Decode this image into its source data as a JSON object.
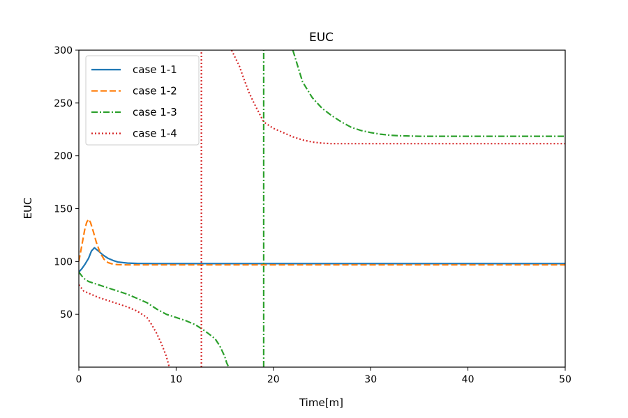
{
  "chart_data": {
    "type": "line",
    "title": "EUC",
    "xlabel": "Time[m]",
    "ylabel": "EUC",
    "xlim": [
      0,
      50
    ],
    "ylim": [
      0,
      300
    ],
    "xticks": [
      0,
      10,
      20,
      30,
      40,
      50
    ],
    "xtick_labels": [
      "0",
      "10",
      "20",
      "30",
      "40",
      "50"
    ],
    "yticks": [
      50,
      100,
      150,
      200,
      250,
      300
    ],
    "ytick_labels": [
      "50",
      "100",
      "150",
      "200",
      "250",
      "300"
    ],
    "grid": false,
    "legend_position": "top-left",
    "series": [
      {
        "name": "case 1-1",
        "color": "#1f77b4",
        "style": "solid",
        "points": [
          [
            0,
            90
          ],
          [
            0.3,
            93
          ],
          [
            0.6,
            97
          ],
          [
            1.0,
            103
          ],
          [
            1.3,
            110
          ],
          [
            1.6,
            113
          ],
          [
            2.0,
            110
          ],
          [
            2.5,
            106
          ],
          [
            3.0,
            103
          ],
          [
            3.5,
            101
          ],
          [
            4.0,
            99.5
          ],
          [
            5.0,
            98.5
          ],
          [
            6.0,
            98.2
          ],
          [
            8.0,
            98
          ],
          [
            10,
            98
          ],
          [
            20,
            98
          ],
          [
            30,
            98
          ],
          [
            40,
            98
          ],
          [
            50,
            98
          ]
        ]
      },
      {
        "name": "case 1-2",
        "color": "#ff7f0e",
        "style": "dashed",
        "points": [
          [
            0,
            100
          ],
          [
            0.3,
            115
          ],
          [
            0.6,
            130
          ],
          [
            0.8,
            137
          ],
          [
            1.0,
            140
          ],
          [
            1.2,
            137
          ],
          [
            1.5,
            128
          ],
          [
            1.8,
            118
          ],
          [
            2.2,
            108
          ],
          [
            2.6,
            102
          ],
          [
            3.0,
            99
          ],
          [
            3.5,
            97.5
          ],
          [
            4.0,
            97
          ],
          [
            5.0,
            96.8
          ],
          [
            10,
            96.8
          ],
          [
            20,
            96.8
          ],
          [
            30,
            96.8
          ],
          [
            40,
            96.8
          ],
          [
            50,
            96.8
          ]
        ]
      },
      {
        "name": "case 1-3",
        "color": "#2ca02c",
        "style": "dashdot",
        "segments": [
          [
            [
              0,
              90
            ],
            [
              0.5,
              84
            ],
            [
              1,
              81
            ],
            [
              2,
              78
            ],
            [
              3,
              75
            ],
            [
              4,
              72
            ],
            [
              5,
              69
            ],
            [
              6,
              65
            ],
            [
              7,
              61
            ],
            [
              8,
              55
            ],
            [
              9,
              50
            ],
            [
              10,
              47
            ],
            [
              11,
              44
            ],
            [
              12,
              40
            ],
            [
              13,
              34
            ],
            [
              14,
              27
            ],
            [
              14.5,
              20
            ],
            [
              15,
              10
            ],
            [
              15.2,
              4
            ],
            [
              15.4,
              0
            ]
          ],
          [
            [
              19,
              0
            ],
            [
              19,
              300
            ]
          ],
          [
            [
              22,
              300
            ],
            [
              23,
              270
            ],
            [
              24,
              255
            ],
            [
              25,
              245
            ],
            [
              26,
              238
            ],
            [
              27,
              232
            ],
            [
              28,
              227
            ],
            [
              29,
              224
            ],
            [
              30,
              222
            ],
            [
              31,
              220.5
            ],
            [
              32,
              219.5
            ],
            [
              33,
              219
            ],
            [
              35,
              218.5
            ],
            [
              40,
              218.5
            ],
            [
              45,
              218.5
            ],
            [
              50,
              218.5
            ]
          ]
        ]
      },
      {
        "name": "case 1-4",
        "color": "#d62728",
        "style": "dotted",
        "segments": [
          [
            [
              0,
              78
            ],
            [
              0.5,
              72
            ],
            [
              1,
              70
            ],
            [
              2,
              66
            ],
            [
              3,
              63
            ],
            [
              4,
              60
            ],
            [
              5,
              57
            ],
            [
              6,
              53
            ],
            [
              7,
              47
            ],
            [
              7.5,
              40
            ],
            [
              8,
              32
            ],
            [
              8.5,
              22
            ],
            [
              9,
              10
            ],
            [
              9.3,
              0
            ]
          ],
          [
            [
              12.6,
              0
            ],
            [
              12.6,
              300
            ]
          ],
          [
            [
              15.7,
              300
            ],
            [
              16.5,
              285
            ],
            [
              17,
              272
            ],
            [
              17.5,
              260
            ],
            [
              18,
              250
            ],
            [
              19,
              232
            ],
            [
              20,
              226
            ],
            [
              21,
              222
            ],
            [
              22,
              218
            ],
            [
              23,
              215
            ],
            [
              24,
              213
            ],
            [
              25,
              212
            ],
            [
              26,
              211.5
            ],
            [
              30,
              211.5
            ],
            [
              40,
              211.5
            ],
            [
              50,
              211.5
            ]
          ]
        ]
      }
    ]
  }
}
